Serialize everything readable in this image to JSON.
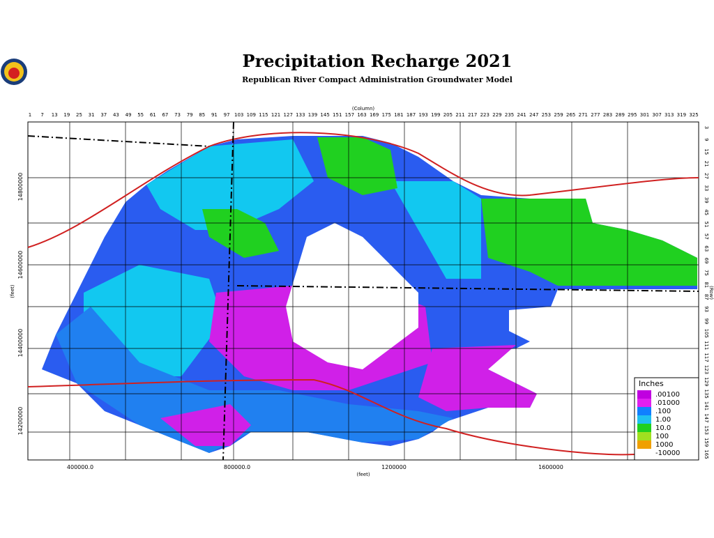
{
  "header": {
    "title": "Precipitation Recharge 2021",
    "subtitle": "Republican River Compact Administration Groundwater Model"
  },
  "axes": {
    "column_title": "(Column)",
    "row_title": "(Row)",
    "left_title": "(feet)",
    "bottom_title": "(feet)",
    "columns": [
      1,
      7,
      13,
      19,
      25,
      31,
      37,
      43,
      49,
      55,
      61,
      67,
      73,
      79,
      85,
      91,
      97,
      103,
      109,
      115,
      121,
      127,
      133,
      139,
      145,
      151,
      157,
      163,
      169,
      175,
      181,
      187,
      193,
      199,
      205,
      211,
      217,
      223,
      229,
      235,
      241,
      247,
      253,
      259,
      265,
      271,
      277,
      283,
      289,
      295,
      301,
      307,
      313,
      319,
      325
    ],
    "rows": [
      3,
      9,
      15,
      21,
      27,
      33,
      39,
      45,
      51,
      57,
      63,
      69,
      75,
      81,
      87,
      93,
      99,
      105,
      111,
      117,
      123,
      129,
      135,
      141,
      147,
      153,
      159,
      165
    ],
    "northing": [
      "14800000",
      "14600000",
      "14400000",
      "14200000"
    ],
    "easting": [
      "400000.0",
      "800000.0",
      "1200000",
      "1600000"
    ]
  },
  "legend": {
    "title": "Inches",
    "items": [
      ".00100",
      ".01000",
      ".100",
      "1.00",
      "10.0",
      "100",
      "1000",
      "-10000"
    ]
  }
}
